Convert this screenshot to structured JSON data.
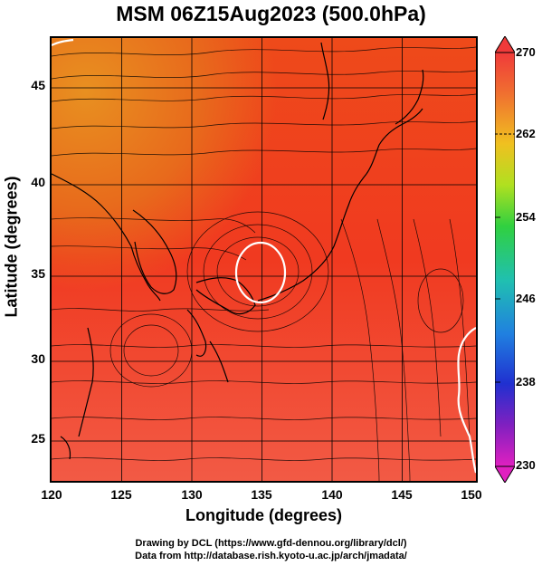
{
  "title": "MSM 06Z15Aug2023 (500.0hPa)",
  "axes": {
    "xlabel": "Longitude (degrees)",
    "ylabel": "Latitude (degrees)",
    "xticks": [
      "120",
      "125",
      "130",
      "135",
      "140",
      "145",
      "150"
    ],
    "yticks": [
      "45",
      "40",
      "35",
      "30",
      "25"
    ]
  },
  "colorbar": {
    "ticks": [
      "270",
      "262",
      "254",
      "246",
      "238",
      "230"
    ]
  },
  "footer": {
    "line1": "Drawing by DCL (https://www.gfd-dennou.org/library/dcl/)",
    "line2": "Data from http://database.rish.kyoto-u.ac.jp/arch/jmadata/"
  },
  "colors": {
    "field_main": "#f04020",
    "field_warm": "#e8601a",
    "field_cool": "#f26040",
    "coast": "#000000",
    "isotherm": "#ffffff"
  }
}
